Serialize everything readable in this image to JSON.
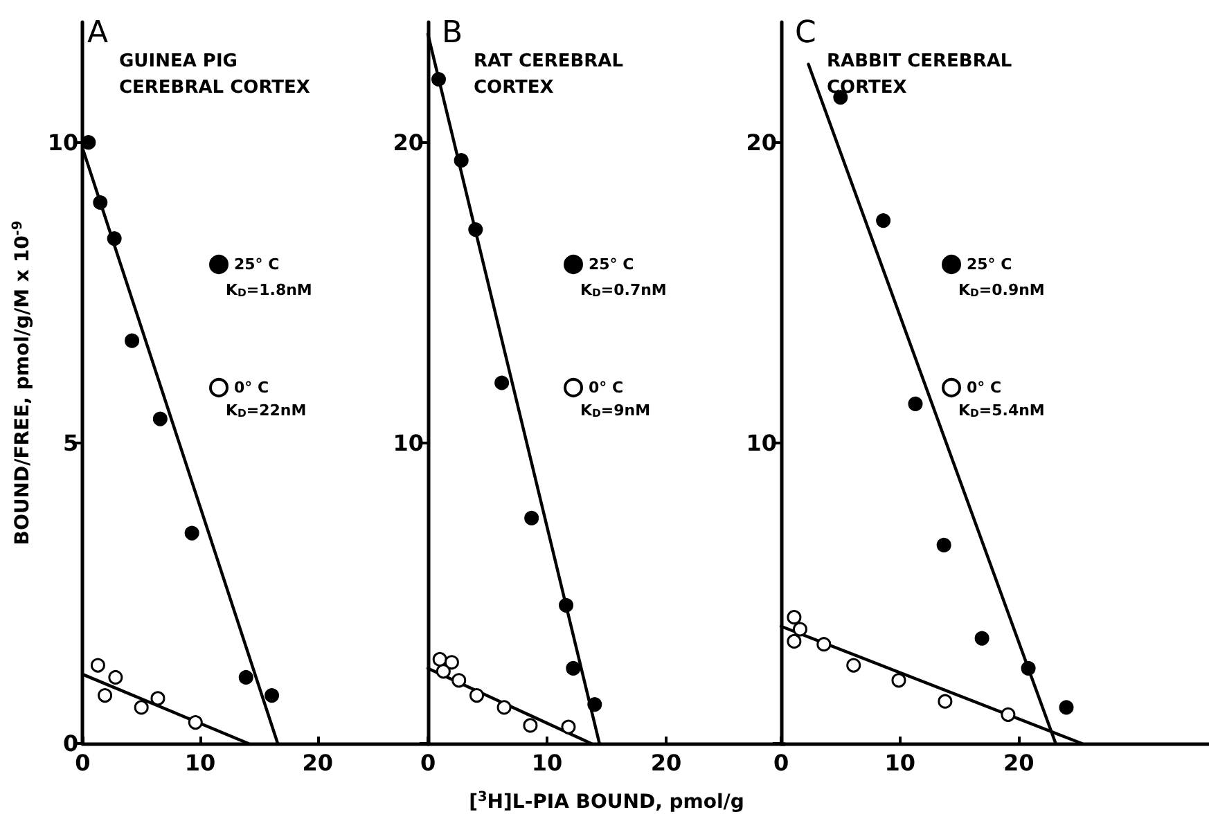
{
  "chart_data": [
    {
      "type": "scatter",
      "title": "A",
      "subtitle": "GUINEA PIG\nCEREBRAL CORTEX",
      "ylabel": "BOUND/FREE, pmol/g/M x 10$^{-9}$",
      "annotations": [
        "K$_{D}$=1.8nM",
        "K$_{D}$=22nM"
      ],
      "xlim": [
        0,
        29.5
      ],
      "xticks": [
        0,
        10,
        20
      ],
      "ylim": [
        0,
        12
      ],
      "yticks": [
        0,
        5,
        10
      ],
      "grid": false,
      "legend": "right",
      "marker": "circle",
      "series": [
        {
          "name": "25° C",
          "color": "#000000",
          "x": [
            0.5,
            1.5,
            2.7,
            4.2,
            6.6,
            9.3,
            13.9,
            16.1
          ],
          "values": [
            10.0,
            9.0,
            8.4,
            6.7,
            5.4,
            3.5,
            1.1,
            0.8
          ]
        },
        {
          "name": "0° C",
          "color": "#ffffff",
          "x": [
            1.3,
            1.9,
            2.8,
            5.0,
            6.4,
            9.6
          ],
          "values": [
            1.3,
            0.8,
            1.1,
            0.6,
            0.75,
            0.35
          ]
        },
        {
          "type": "line",
          "color": "#000000",
          "marker": "none",
          "x": [
            0,
            16.6
          ],
          "values": [
            9.9,
            0
          ]
        },
        {
          "type": "line",
          "color": "#000000",
          "marker": "none",
          "x": [
            0,
            14.1
          ],
          "values": [
            1.15,
            0
          ]
        }
      ]
    },
    {
      "type": "scatter",
      "title": "B",
      "subtitle": "RAT CEREBRAL\nCORTEX",
      "xlabel": "[$^{3}$H]L-PIA BOUND, pmol/g",
      "annotations": [
        "K$_{D}$=0.7nM",
        "K$_{D}$=9nM"
      ],
      "xlim": [
        0,
        30
      ],
      "xticks": [
        0,
        10,
        20
      ],
      "ylim": [
        0,
        24
      ],
      "yticks": [
        {
          "value": 0,
          "label": null
        },
        10,
        20
      ],
      "grid": false,
      "legend": "right",
      "marker": "circle",
      "series": [
        {
          "name": "25° C",
          "color": "#000000",
          "x": [
            0.9,
            2.8,
            4.0,
            6.2,
            8.7,
            11.6,
            12.2,
            14.0
          ],
          "values": [
            22.1,
            19.4,
            17.1,
            12.0,
            7.5,
            4.6,
            2.5,
            1.3
          ]
        },
        {
          "name": "0° C",
          "color": "#ffffff",
          "x": [
            1.0,
            1.3,
            2.0,
            2.6,
            4.1,
            6.4,
            8.6,
            11.8
          ],
          "values": [
            2.8,
            2.4,
            2.7,
            2.1,
            1.6,
            1.2,
            0.6,
            0.55
          ]
        },
        {
          "type": "line",
          "color": "#000000",
          "marker": "none",
          "x": [
            0,
            14.4
          ],
          "values": [
            23.6,
            0
          ]
        },
        {
          "type": "line",
          "color": "#000000",
          "marker": "none",
          "x": [
            0,
            13.7
          ],
          "values": [
            2.5,
            0
          ]
        }
      ]
    },
    {
      "type": "scatter",
      "title": "C",
      "subtitle": "RABBIT CEREBRAL\nCORTEX",
      "annotations": [
        "K$_{D}$=0.9nM",
        "K$_{D}$=5.4nM"
      ],
      "xlim": [
        0,
        36
      ],
      "xticks": [
        0,
        10,
        20
      ],
      "ylim": [
        0,
        24
      ],
      "yticks": [
        {
          "value": 0,
          "label": null
        },
        10,
        20
      ],
      "grid": false,
      "legend": "right",
      "marker": "circle",
      "series": [
        {
          "name": "25° C",
          "color": "#000000",
          "x": [
            5.0,
            8.6,
            11.3,
            13.7,
            16.9,
            20.8,
            24.0
          ],
          "values": [
            21.5,
            17.4,
            11.3,
            6.6,
            3.5,
            2.5,
            1.2
          ]
        },
        {
          "name": "0° C",
          "color": "#ffffff",
          "x": [
            1.1,
            1.1,
            1.6,
            3.6,
            6.1,
            9.9,
            13.8,
            19.1
          ],
          "values": [
            4.2,
            3.4,
            3.8,
            3.3,
            2.6,
            2.1,
            1.4,
            0.96
          ]
        },
        {
          "type": "line",
          "color": "#000000",
          "marker": "none",
          "x": [
            2.3,
            23.1
          ],
          "values": [
            22.6,
            0
          ]
        },
        {
          "type": "line",
          "color": "#000000",
          "marker": "none",
          "x": [
            0,
            25.3
          ],
          "values": [
            3.9,
            0
          ]
        }
      ]
    }
  ]
}
